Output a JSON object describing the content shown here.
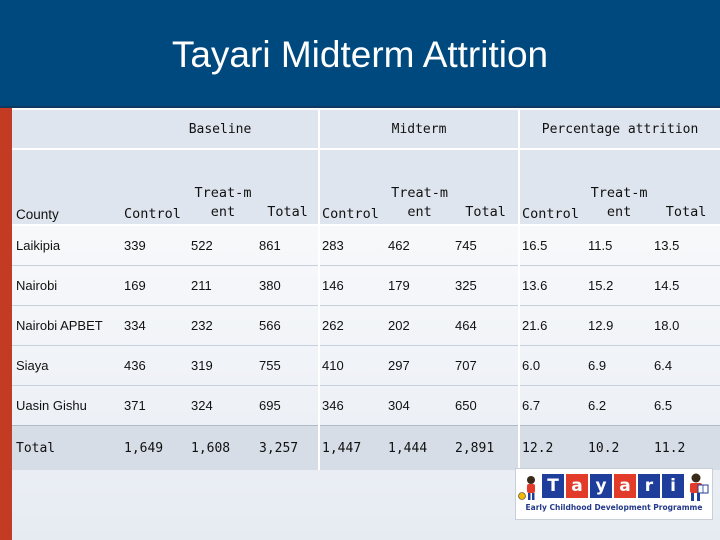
{
  "title": "Tayari Midterm Attrition",
  "groups": [
    "Baseline",
    "Midterm",
    "Percentage attrition"
  ],
  "subheaders": {
    "county": "County",
    "control": "Control",
    "treatment_line1": "Treat-m",
    "treatment_line2": "ent",
    "total": "Total"
  },
  "rows": [
    {
      "county": "Laikipia",
      "values": [
        "339",
        "522",
        "861",
        "283",
        "462",
        "745",
        "16.5",
        "11.5",
        "13.5"
      ]
    },
    {
      "county": "Nairobi",
      "values": [
        "169",
        "211",
        "380",
        "146",
        "179",
        "325",
        "13.6",
        "15.2",
        "14.5"
      ]
    },
    {
      "county": "Nairobi APBET",
      "values": [
        "334",
        "232",
        "566",
        "262",
        "202",
        "464",
        "21.6",
        "12.9",
        "18.0"
      ]
    },
    {
      "county": "Siaya",
      "values": [
        "436",
        "319",
        "755",
        "410",
        "297",
        "707",
        "6.0",
        "6.9",
        "6.4"
      ]
    },
    {
      "county": "Uasin Gishu",
      "values": [
        "371",
        "324",
        "695",
        "346",
        "304",
        "650",
        "6.7",
        "6.2",
        "6.5"
      ]
    }
  ],
  "total": {
    "county": "Total",
    "values": [
      "1,649",
      "1,608",
      "3,257",
      "1,447",
      "1,444",
      "2,891",
      "12.2",
      "10.2",
      "11.2"
    ]
  },
  "logo": {
    "letters": [
      "T",
      "a",
      "y",
      "a",
      "r",
      "i"
    ],
    "tagline": "Early Childhood Development Programme",
    "colors": [
      "#1f3d9a",
      "#e23b2a",
      "#1f3d9a",
      "#e23b2a",
      "#1f3d9a",
      "#1f3d9a"
    ]
  },
  "colors": {
    "header": "#00497e",
    "accent_bar": "#c23b22"
  }
}
